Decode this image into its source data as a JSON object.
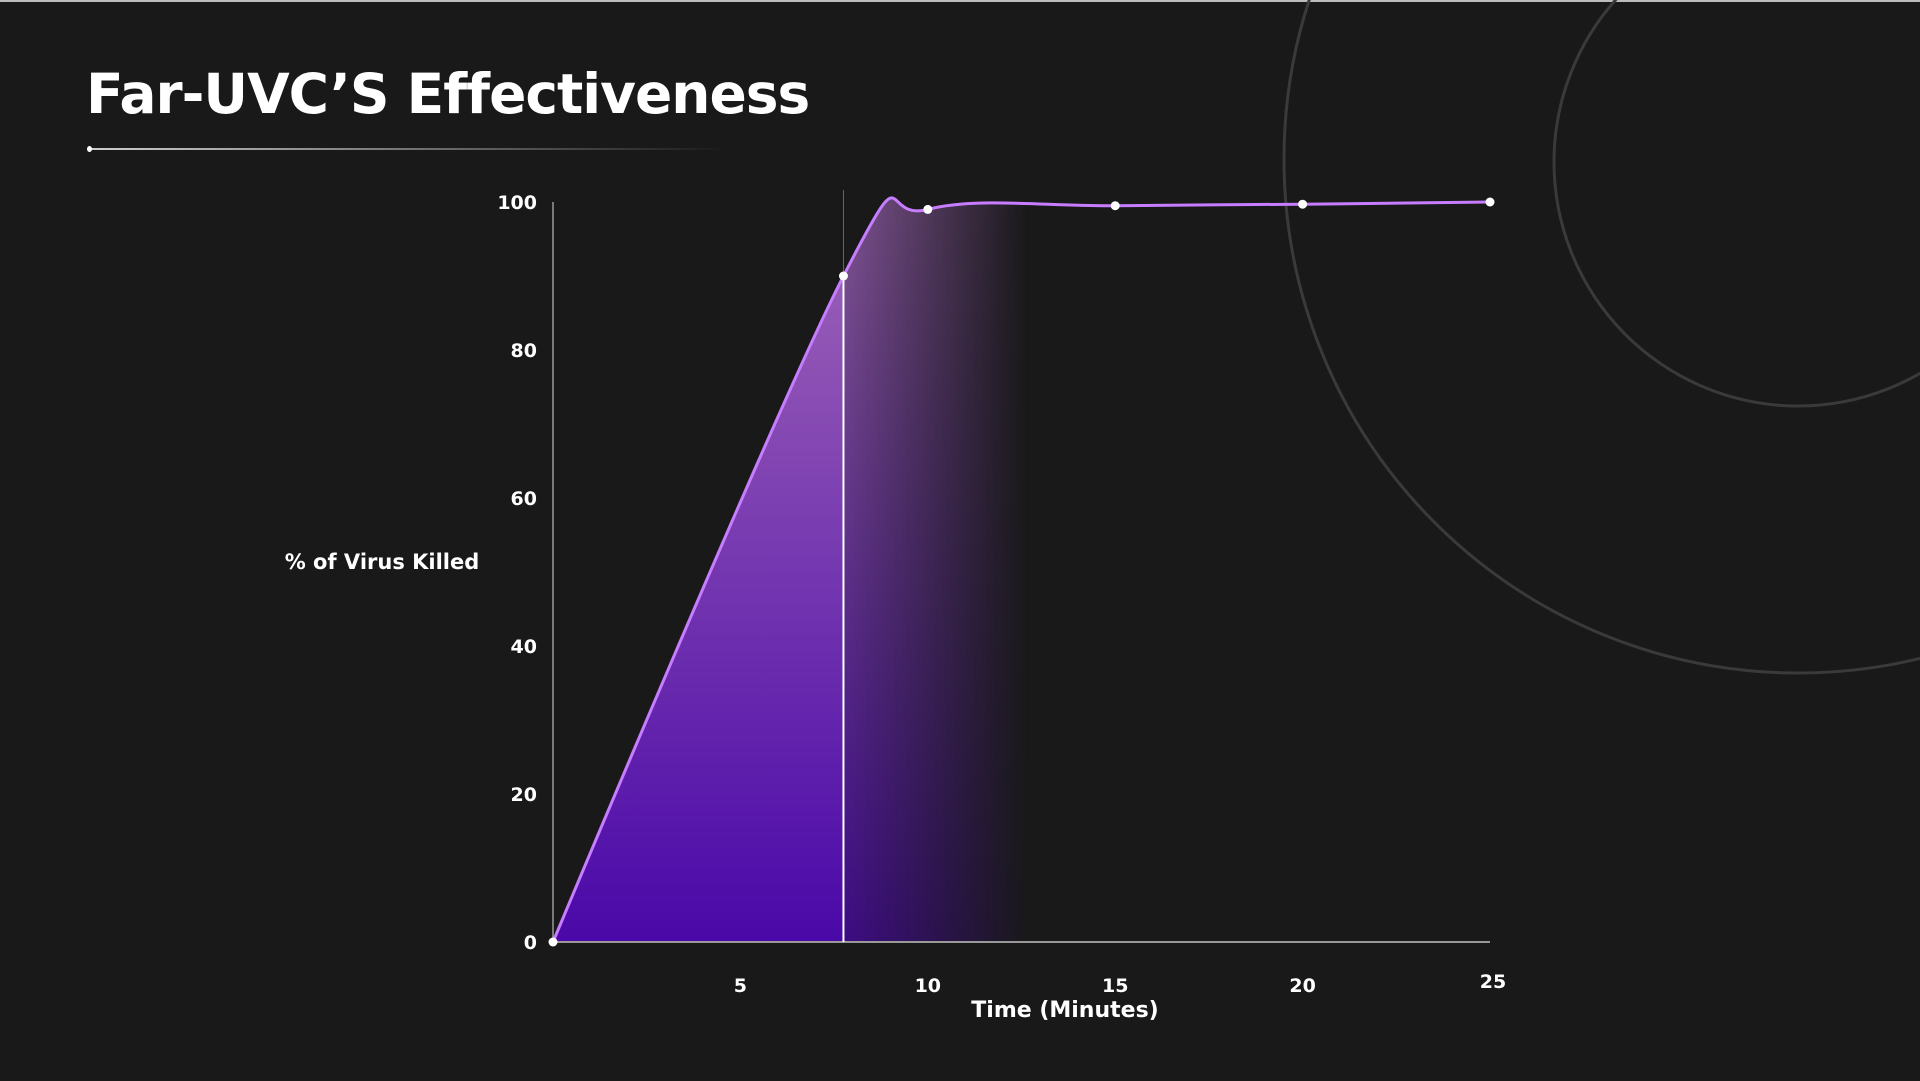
{
  "title": "Far-UVC’S Effectiveness",
  "colors": {
    "background": "#191919",
    "line": "#c77dff",
    "fill_top": "#9a5fb0",
    "fill_bottom": "#4a08a8",
    "axis": "#cccccc",
    "decor_circles": "#3a3a3a"
  },
  "chart_data": {
    "type": "area",
    "title": "",
    "xlabel": "Time (Minutes)",
    "ylabel": "% of Virus Killed",
    "xlim": [
      0,
      25
    ],
    "ylim": [
      0,
      100
    ],
    "x_ticks": [
      5,
      10,
      15,
      20,
      25
    ],
    "y_ticks": [
      0,
      20,
      40,
      60,
      80,
      100
    ],
    "grid": false,
    "points": [
      {
        "x": 0,
        "y": 0
      },
      {
        "x": 7.75,
        "y": 90
      },
      {
        "x": 10,
        "y": 99
      },
      {
        "x": 15,
        "y": 99.5
      },
      {
        "x": 20,
        "y": 99.7
      },
      {
        "x": 25,
        "y": 100
      }
    ],
    "marker_line_x": 7.75
  }
}
